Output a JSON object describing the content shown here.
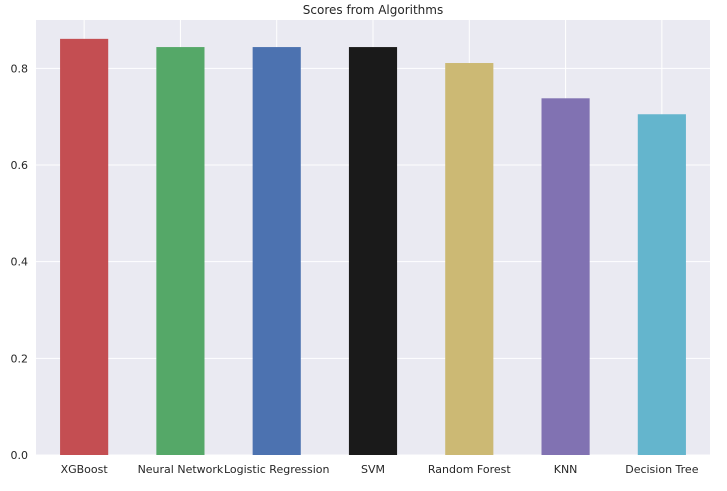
{
  "chart_data": {
    "type": "bar",
    "title": "Scores from Algorithms",
    "xlabel": "",
    "ylabel": "",
    "categories": [
      "XGBoost",
      "Neural Network",
      "Logistic Regression",
      "SVM",
      "Random Forest",
      "KNN",
      "Decision Tree"
    ],
    "values": [
      0.861,
      0.844,
      0.844,
      0.844,
      0.811,
      0.738,
      0.705
    ],
    "colors": [
      "#c44e52",
      "#55a868",
      "#4c72b0",
      "#1a1a1a",
      "#ccb974",
      "#8172b2",
      "#64b5cd"
    ],
    "yticks": [
      "0.0",
      "0.2",
      "0.4",
      "0.6",
      "0.8"
    ],
    "ylim": [
      0,
      0.9
    ],
    "grid": true,
    "legend": "none",
    "style": {
      "plot_background": "#eaeaf2",
      "grid_color": "#ffffff"
    }
  }
}
